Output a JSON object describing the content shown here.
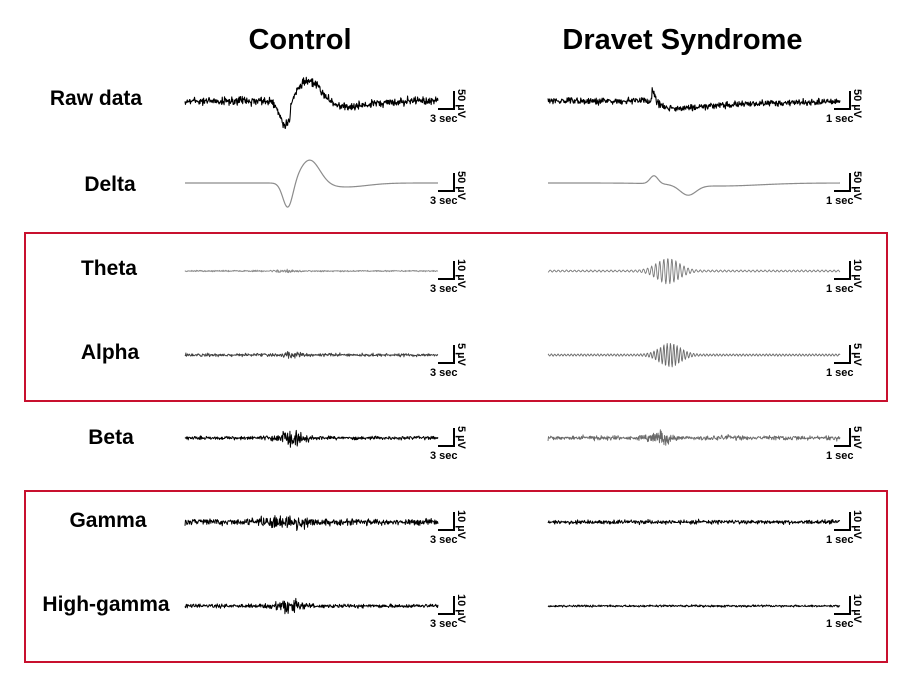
{
  "columns": [
    "Control",
    "Dravet Syndrome"
  ],
  "rows": [
    {
      "label": "Raw data",
      "control": {
        "scale_amp": "50 µV",
        "scale_time": "3 sec"
      },
      "dravet": {
        "scale_amp": "50 µV",
        "scale_time": "1 sec"
      }
    },
    {
      "label": "Delta",
      "control": {
        "scale_amp": "50 µV",
        "scale_time": "3 sec"
      },
      "dravet": {
        "scale_amp": "50 µV",
        "scale_time": "1 sec"
      }
    },
    {
      "label": "Theta",
      "control": {
        "scale_amp": "10 µV",
        "scale_time": "3 sec"
      },
      "dravet": {
        "scale_amp": "10 µV",
        "scale_time": "1 sec"
      }
    },
    {
      "label": "Alpha",
      "control": {
        "scale_amp": "5 µV",
        "scale_time": "3 sec"
      },
      "dravet": {
        "scale_amp": "5 µV",
        "scale_time": "1 sec"
      }
    },
    {
      "label": "Beta",
      "control": {
        "scale_amp": "5 µV",
        "scale_time": "3 sec"
      },
      "dravet": {
        "scale_amp": "5 µV",
        "scale_time": "1 sec"
      }
    },
    {
      "label": "Gamma",
      "control": {
        "scale_amp": "10 µV",
        "scale_time": "3 sec"
      },
      "dravet": {
        "scale_amp": "10 µV",
        "scale_time": "1 sec"
      }
    },
    {
      "label": "High-gamma",
      "control": {
        "scale_amp": "10 µV",
        "scale_time": "3 sec"
      },
      "dravet": {
        "scale_amp": "10 µV",
        "scale_time": "1 sec"
      }
    }
  ],
  "highlight_groups": [
    {
      "rows": [
        "Theta",
        "Alpha"
      ],
      "color": "#c8102e"
    },
    {
      "rows": [
        "Gamma",
        "High-gamma"
      ],
      "color": "#c8102e"
    }
  ],
  "colors": {
    "trace_dark": "#000000",
    "trace_gray": "#8c8c8c",
    "highlight": "#c8102e"
  }
}
